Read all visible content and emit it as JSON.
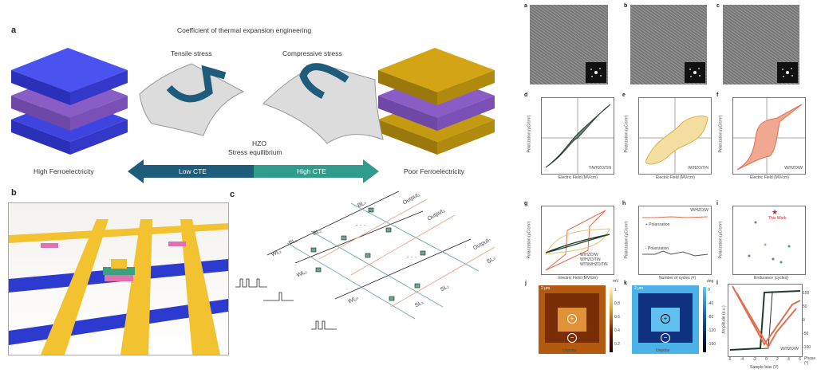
{
  "panel_a": {
    "label": "a",
    "title": "Coefficient of thermal expansion engineering",
    "tensile": "Tensile stress",
    "compressive": "Compressive stress",
    "hzo": "HZO",
    "equilibrium": "Stress equilibrium",
    "high_fe": "High Ferroelectricity",
    "poor_fe": "Poor Ferroelectricity",
    "low_cte": "Low CTE",
    "high_cte": "High CTE"
  },
  "panel_b": {
    "label": "b"
  },
  "panel_c": {
    "label": "c",
    "bl1": "BL₁",
    "bl2": "BL₂",
    "bln": "BLₙ",
    "wl1": "WL₁",
    "wl2": "WL₂",
    "wln": "WLₙ",
    "out1": "Output₁",
    "out2": "Output₂",
    "outn": "Outputₙ",
    "sl1": "SL₁",
    "sl2": "SL₂",
    "sln": "SLₙ",
    "dots": "· · ·"
  },
  "tem": {
    "labels": [
      "a",
      "b",
      "c"
    ]
  },
  "pe": {
    "xlabel": "Electric Field (MV/cm)",
    "ylabel": "Polarization (μC/cm²)",
    "d": {
      "label": "d",
      "sample": "TiN/HZO/TiN"
    },
    "e": {
      "label": "e",
      "sample": "W/HZO/TiN"
    },
    "f": {
      "label": "f",
      "sample": "W/HZO/W"
    },
    "g": {
      "label": "g",
      "legend": [
        "W/HZO/W",
        "W/HZO/TiN",
        "W/TiN/HZO/TiN"
      ]
    }
  },
  "h": {
    "label": "h",
    "sample": "W/HZO/W",
    "xlabel": "Number of cycles (#)",
    "ylabel": "Polarization (μC/cm²)",
    "pplus": "+ Polarization",
    "pminus": "- Polarization"
  },
  "i": {
    "label": "i",
    "xlabel": "Endurance (cycles)",
    "ylabel": "Polarization (μC/cm²)",
    "star": "This Work"
  },
  "j": {
    "label": "j",
    "unit": "mV",
    "ticks": [
      "1",
      "0.8",
      "0.6",
      "0.4",
      "0.2"
    ],
    "scale": "2 μm",
    "caption": "Unpolar",
    "plus": "+",
    "minus": "−"
  },
  "k": {
    "label": "k",
    "unit": "deg",
    "ticks": [
      "0",
      "-40",
      "-80",
      "-120",
      "-160"
    ],
    "scale": "2 μm",
    "caption": "Unpolar",
    "plus": "+",
    "minus": "−"
  },
  "l": {
    "label": "l",
    "sample": "W/HZO/W",
    "xlabel": "Sample bias (V)",
    "ylabel_left": "Amplitude (a.u.)",
    "ylabel_right": "Phase (°)",
    "right_ticks": [
      "100",
      "50",
      "0",
      "-50",
      "-100"
    ],
    "x_ticks": [
      "-6",
      "-4",
      "-2",
      "0",
      "2",
      "4",
      "6"
    ]
  },
  "colors": {
    "teal_dark": "#1d5c7a",
    "teal_light": "#2f9c8c",
    "blue": "#3d44e0",
    "purple": "#8a5cc6",
    "gold": "#d3a514",
    "green": "#1f3d2e",
    "yellow": "#e8c46a",
    "orange": "#e07050"
  }
}
